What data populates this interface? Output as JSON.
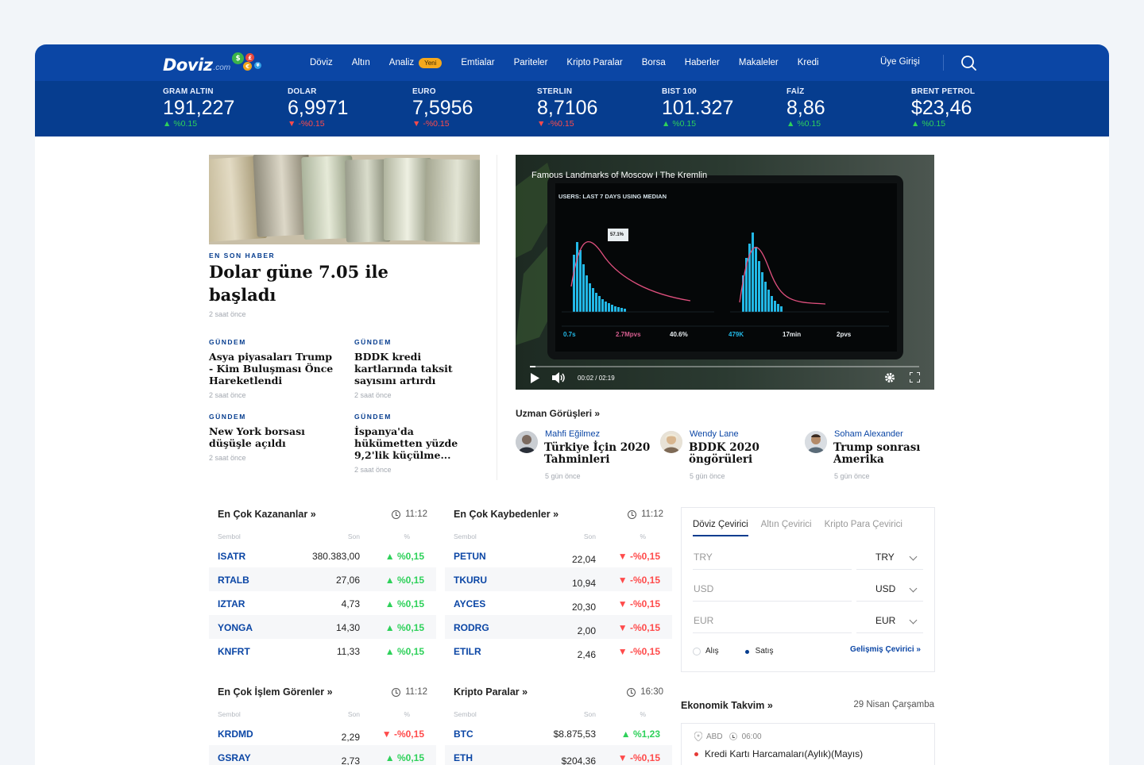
{
  "brand": {
    "name": "Doviz",
    "suffix": ".com",
    "coins": [
      "$",
      "£",
      "€",
      "¥"
    ]
  },
  "nav": {
    "items": [
      {
        "label": "Döviz"
      },
      {
        "label": "Altın"
      },
      {
        "label": "Analiz",
        "badge": "Yeni"
      },
      {
        "label": "Emtialar"
      },
      {
        "label": "Pariteler"
      },
      {
        "label": "Kripto Paralar"
      },
      {
        "label": "Borsa"
      },
      {
        "label": "Haberler"
      },
      {
        "label": "Makaleler"
      },
      {
        "label": "Kredi"
      }
    ],
    "login": "Üye Girişi",
    "search_icon": "search-icon"
  },
  "ticker": [
    {
      "label": "GRAM ALTIN",
      "value": "191,227",
      "change": "%0.15",
      "dir": "up",
      "arrow": "▲"
    },
    {
      "label": "DOLAR",
      "value": "6,9971",
      "change": "-%0.15",
      "dir": "down",
      "arrow": "▼"
    },
    {
      "label": "EURO",
      "value": "7,5956",
      "change": "-%0.15",
      "dir": "down",
      "arrow": "▼"
    },
    {
      "label": "STERLIN",
      "value": "8,7106",
      "change": "-%0.15",
      "dir": "down",
      "arrow": "▼"
    },
    {
      "label": "BIST 100",
      "value": "101.327",
      "change": "%0.15",
      "dir": "up",
      "arrow": "▲"
    },
    {
      "label": "FAİZ",
      "value": "8,86",
      "change": "%0.15",
      "dir": "up",
      "arrow": "▲"
    },
    {
      "label": "BRENT PETROL",
      "value": "$23,46",
      "change": "%0.15",
      "dir": "up",
      "arrow": "▲"
    }
  ],
  "featured": {
    "eyebrow": "EN SON HABER",
    "title": "Dolar güne 7.05 ile başladı",
    "time": "2 saat önce"
  },
  "news": [
    {
      "eyebrow": "GÜNDEM",
      "title": "Asya piyasaları Trump - Kim Buluşması Önce Hareketlendi",
      "time": "2 saat önce"
    },
    {
      "eyebrow": "GÜNDEM",
      "title": "BDDK kredi kartlarında taksit sayısını artırdı",
      "time": "2 saat önce"
    },
    {
      "eyebrow": "GÜNDEM",
      "title": "New York borsası düşüşle açıldı",
      "time": "2 saat önce"
    },
    {
      "eyebrow": "GÜNDEM",
      "title": "İspanya'da hükümetten yüzde 9,2'lik küçülme...",
      "time": "2 saat önce"
    }
  ],
  "video": {
    "title": "Famous Landmarks of Moscow I The Kremlin",
    "time": "00:02 / 02:19",
    "progress": 0.015,
    "screen": {
      "header": "USERS: LAST 7 DAYS USING MEDIAN",
      "tooltip": "57.1%",
      "metrics": [
        "0.7s",
        "2.7Mpvs",
        "40.6%",
        "479K",
        "17min",
        "2pvs"
      ]
    }
  },
  "experts": {
    "heading": "Uzman Görüşleri »",
    "items": [
      {
        "name": "Mahfi Eğilmez",
        "title": "Türkiye İçin 2020 Tahminleri",
        "time": "5 gün önce"
      },
      {
        "name": "Wendy Lane",
        "title": "BDDK 2020 öngörüleri",
        "time": "5 gün önce"
      },
      {
        "name": "Soham Alexander",
        "title": "Trump sonrası Amerika",
        "time": "5 gün önce"
      }
    ]
  },
  "tables": {
    "gainers": {
      "title": "En Çok Kazananlar",
      "more": "»",
      "time": "11:12",
      "cols": [
        "Sembol",
        "Son",
        "%"
      ],
      "rows": [
        {
          "sym": "ISATR",
          "val": "380.383,00",
          "chg": "%0,15",
          "dir": "up",
          "arrow": "▲"
        },
        {
          "sym": "RTALB",
          "val": "27,06",
          "chg": "%0,15",
          "dir": "up",
          "arrow": "▲"
        },
        {
          "sym": "IZTAR",
          "val": "4,73",
          "chg": "%0,15",
          "dir": "up",
          "arrow": "▲"
        },
        {
          "sym": "YONGA",
          "val": "14,30",
          "chg": "%0,15",
          "dir": "up",
          "arrow": "▲"
        },
        {
          "sym": "KNFRT",
          "val": "11,33",
          "chg": "%0,15",
          "dir": "up",
          "arrow": "▲"
        }
      ]
    },
    "losers": {
      "title": "En Çok Kaybedenler",
      "more": "»",
      "time": "11:12",
      "cols": [
        "Sembol",
        "Son",
        "%"
      ],
      "rows": [
        {
          "sym": "PETUN",
          "val": "22,04",
          "chg": "-%0,15",
          "dir": "down",
          "arrow": "▼"
        },
        {
          "sym": "TKURU",
          "val": "10,94",
          "chg": "-%0,15",
          "dir": "down",
          "arrow": "▼"
        },
        {
          "sym": "AYCES",
          "val": "20,30",
          "chg": "-%0,15",
          "dir": "down",
          "arrow": "▼"
        },
        {
          "sym": "RODRG",
          "val": "2,00",
          "chg": "-%0,15",
          "dir": "down",
          "arrow": "▼"
        },
        {
          "sym": "ETILR",
          "val": "2,46",
          "chg": "-%0,15",
          "dir": "down",
          "arrow": "▼"
        }
      ]
    },
    "volume": {
      "title": "En Çok İşlem Görenler",
      "more": "»",
      "time": "11:12",
      "cols": [
        "Sembol",
        "Son",
        "%"
      ],
      "rows": [
        {
          "sym": "KRDMD",
          "val": "2,29",
          "chg": "-%0,15",
          "dir": "down",
          "arrow": "▼"
        },
        {
          "sym": "GSRAY",
          "val": "2,73",
          "chg": "%0,15",
          "dir": "up",
          "arrow": "▲"
        }
      ]
    },
    "crypto": {
      "title": "Kripto Paralar",
      "more": "»",
      "time": "16:30",
      "cols": [
        "Sembol",
        "Son",
        "%"
      ],
      "rows": [
        {
          "sym": "BTC",
          "val": "$8.875,53",
          "chg": "%1,23",
          "dir": "up",
          "arrow": "▲"
        },
        {
          "sym": "ETH",
          "val": "$204,36",
          "chg": "-%0,15",
          "dir": "down",
          "arrow": "▼"
        }
      ]
    }
  },
  "converter": {
    "tabs": [
      "Döviz Çevirici",
      "Altın Çevirici",
      "Kripto Para Çevirici"
    ],
    "active_tab": 0,
    "rows": [
      {
        "placeholder": "TRY",
        "currency": "TRY"
      },
      {
        "placeholder": "USD",
        "currency": "USD"
      },
      {
        "placeholder": "EUR",
        "currency": "EUR"
      }
    ],
    "radios": [
      {
        "label": "Alış",
        "checked": false
      },
      {
        "label": "Satış",
        "checked": true
      }
    ],
    "advanced": "Gelişmiş Çevirici »"
  },
  "calendar": {
    "heading": "Ekonomik Takvim »",
    "date": "29 Nisan Çarşamba",
    "event": {
      "country": "ABD",
      "time": "06:00",
      "title": "Kredi Kartı Harcamaları(Aylık)(Mayıs)"
    }
  },
  "colors": {
    "nav_bg": "#0b46a5",
    "ticker_bg": "#063d8f",
    "up": "#2ed15a",
    "down": "#ff4b4b",
    "accent": "#f4a81d"
  }
}
